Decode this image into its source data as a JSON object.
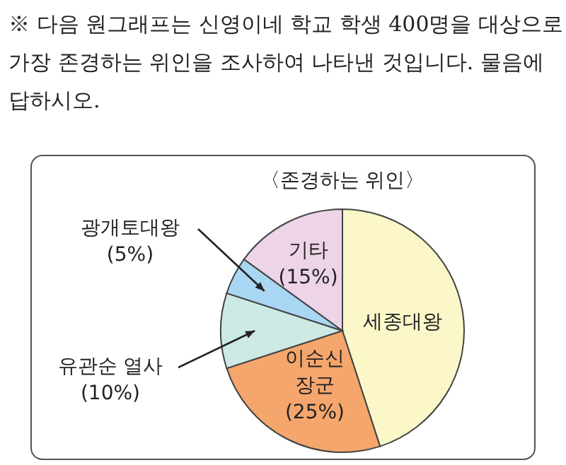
{
  "chart_data": {
    "type": "pie",
    "title": "〈존경하는 위인〉",
    "annotations": [
      "※ 다음 원그래프는 신영이네 학교 학생 400명을 대상으로 가장 존경하는 위인을 조사하여 나타낸 것입니다. 물음에 답하시오."
    ],
    "categories": [
      "세종대왕",
      "이순신 장군",
      "유관순 열사",
      "광개토대왕",
      "기타"
    ],
    "values": [
      45,
      25,
      10,
      5,
      15
    ],
    "value_labels": [
      null,
      "(25%)",
      "(10%)",
      "(5%)",
      "(15%)"
    ],
    "colors": [
      "#fbf7c9",
      "#f5a66c",
      "#cde9e3",
      "#a9d6f2",
      "#edd4e7"
    ]
  }
}
